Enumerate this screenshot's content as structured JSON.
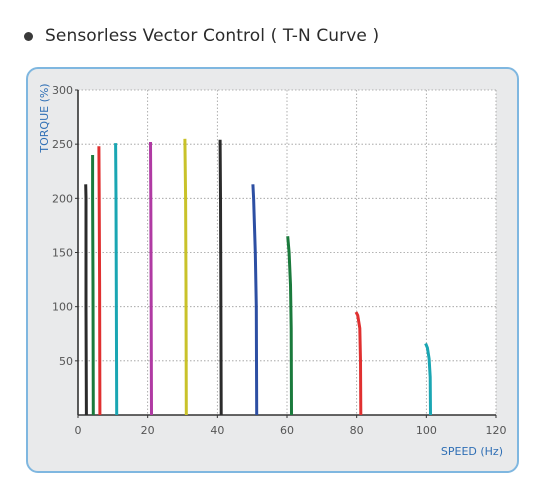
{
  "heading": {
    "bullet_icon": "bullet-dot-icon",
    "title": "Sensorless Vector Control ( T-N Curve )"
  },
  "colors": {
    "panel_border": "#7fb7e0",
    "panel_bg": "#e9eaeb",
    "axis_label": "#2f6fb5",
    "tick": "#555555"
  },
  "chart_data": {
    "type": "line",
    "title": "Sensorless Vector Control ( T-N Curve )",
    "xlabel": "SPEED (Hz)",
    "ylabel": "TORQUE (%)",
    "xlim": [
      0,
      120
    ],
    "ylim": [
      0,
      300
    ],
    "x_ticks": [
      "0",
      "20",
      "40",
      "60",
      "80",
      "100",
      "120"
    ],
    "y_ticks": [
      "50",
      "100",
      "150",
      "200",
      "250",
      "300"
    ],
    "x_tick_values": [
      0,
      20,
      40,
      60,
      80,
      100,
      120
    ],
    "y_tick_values": [
      50,
      100,
      150,
      200,
      250,
      300
    ],
    "grid": true,
    "legend": "none",
    "series": [
      {
        "color": "#2b2b2b",
        "points": [
          [
            2.4,
            0
          ],
          [
            2.3,
            100
          ],
          [
            2.3,
            200
          ],
          [
            2.2,
            213
          ]
        ]
      },
      {
        "color": "#1a7a3c",
        "points": [
          [
            4.4,
            0
          ],
          [
            4.3,
            120
          ],
          [
            4.2,
            200
          ],
          [
            4.2,
            240
          ]
        ]
      },
      {
        "color": "#e03030",
        "points": [
          [
            6.3,
            0
          ],
          [
            6.2,
            120
          ],
          [
            6.1,
            200
          ],
          [
            6.0,
            248
          ]
        ]
      },
      {
        "color": "#1aa6b3",
        "points": [
          [
            11.1,
            0
          ],
          [
            11.0,
            120
          ],
          [
            10.9,
            200
          ],
          [
            10.8,
            251
          ]
        ]
      },
      {
        "color": "#b03aa3",
        "points": [
          [
            21.1,
            0
          ],
          [
            21.0,
            120
          ],
          [
            20.9,
            200
          ],
          [
            20.8,
            252
          ]
        ]
      },
      {
        "color": "#c9c22a",
        "points": [
          [
            31.1,
            0
          ],
          [
            31.0,
            120
          ],
          [
            30.9,
            200
          ],
          [
            30.7,
            255
          ]
        ]
      },
      {
        "color": "#2b2b2b",
        "points": [
          [
            41.1,
            0
          ],
          [
            41.0,
            120
          ],
          [
            40.9,
            200
          ],
          [
            40.8,
            254
          ]
        ]
      },
      {
        "color": "#2d4fa3",
        "points": [
          [
            51.3,
            0
          ],
          [
            51.2,
            100
          ],
          [
            50.9,
            150
          ],
          [
            50.4,
            200
          ],
          [
            50.2,
            213
          ]
        ]
      },
      {
        "color": "#1a7a3c",
        "points": [
          [
            61.3,
            0
          ],
          [
            61.2,
            80
          ],
          [
            61.0,
            120
          ],
          [
            60.6,
            150
          ],
          [
            60.2,
            165
          ]
        ]
      },
      {
        "color": "#e03030",
        "points": [
          [
            81.2,
            0
          ],
          [
            81.1,
            50
          ],
          [
            80.9,
            80
          ],
          [
            80.3,
            92
          ],
          [
            79.8,
            95
          ]
        ]
      },
      {
        "color": "#1aa6b3",
        "points": [
          [
            101.2,
            0
          ],
          [
            101.1,
            35
          ],
          [
            100.8,
            52
          ],
          [
            100.3,
            62
          ],
          [
            99.8,
            66
          ]
        ]
      }
    ]
  }
}
